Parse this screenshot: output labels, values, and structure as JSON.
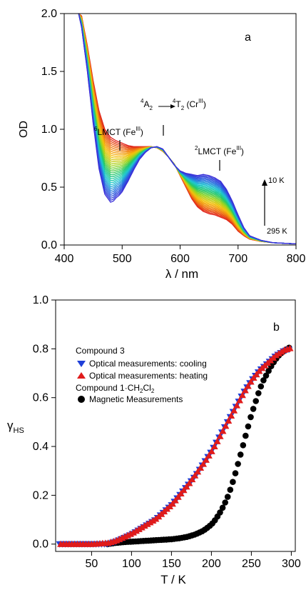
{
  "chart_data": [
    {
      "type": "line",
      "panel_label": "a",
      "xlabel": "λ / nm",
      "ylabel": "OD",
      "xlim": [
        400,
        800
      ],
      "ylim": [
        0.0,
        2.0
      ],
      "xticks": [
        "400",
        "500",
        "600",
        "700",
        "800"
      ],
      "yticks": [
        "0.0",
        "0.5",
        "1.0",
        "1.5",
        "2.0"
      ],
      "annotations": {
        "lmct6": {
          "lead": "6",
          "main": "LMCT (Fe",
          "sup": "III",
          "tail": ")"
        },
        "dd": {
          "s1": "4",
          "a": "A",
          "a_sub": "2",
          "s2": "4",
          "t": "T",
          "t_sub": "2",
          "cr": " (Cr",
          "cr_sup": "III",
          "tail": ")"
        },
        "lmct2": {
          "lead": "2",
          "main": "LMCT (Fe",
          "sup": "III",
          "tail": ")"
        },
        "temp_high": "10 K",
        "temp_low": "295 K"
      },
      "color_gradient": [
        "#e0201a",
        "#f07a12",
        "#f5c20c",
        "#9cd51e",
        "#22c86a",
        "#1ec8d0",
        "#2a6ae0",
        "#3a2fd8"
      ],
      "series": [
        {
          "temperature": "295 K",
          "x": [
            425,
            430,
            440,
            450,
            460,
            470,
            480,
            490,
            500,
            510,
            520,
            530,
            540,
            550,
            560,
            570,
            580,
            590,
            600,
            610,
            620,
            630,
            640,
            650,
            660,
            670,
            680,
            690,
            700,
            710,
            720,
            740,
            760,
            780,
            800
          ],
          "y": [
            2.0,
            1.98,
            1.72,
            1.42,
            1.16,
            1.0,
            0.93,
            0.9,
            0.88,
            0.86,
            0.85,
            0.85,
            0.85,
            0.85,
            0.84,
            0.81,
            0.76,
            0.7,
            0.6,
            0.5,
            0.4,
            0.33,
            0.29,
            0.27,
            0.26,
            0.24,
            0.22,
            0.18,
            0.12,
            0.08,
            0.05,
            0.03,
            0.02,
            0.015,
            0.01
          ]
        },
        {
          "temperature": "10 K",
          "x": [
            425,
            430,
            440,
            450,
            460,
            470,
            480,
            485,
            490,
            495,
            500,
            510,
            520,
            530,
            540,
            550,
            560,
            570,
            580,
            590,
            600,
            610,
            620,
            630,
            640,
            650,
            660,
            670,
            680,
            690,
            700,
            710,
            720,
            740,
            760,
            780,
            800
          ],
          "y": [
            2.0,
            1.88,
            1.5,
            1.05,
            0.66,
            0.44,
            0.37,
            0.38,
            0.41,
            0.43,
            0.46,
            0.55,
            0.65,
            0.74,
            0.8,
            0.84,
            0.85,
            0.83,
            0.76,
            0.69,
            0.64,
            0.62,
            0.61,
            0.6,
            0.61,
            0.6,
            0.58,
            0.55,
            0.48,
            0.38,
            0.26,
            0.15,
            0.08,
            0.04,
            0.02,
            0.015,
            0.01
          ]
        }
      ]
    },
    {
      "type": "scatter",
      "panel_label": "b",
      "xlabel": "T / K",
      "ylabel": "γHS",
      "xlim": [
        5,
        305
      ],
      "ylim": [
        -0.03,
        1.0
      ],
      "xticks": [
        "50",
        "100",
        "150",
        "200",
        "250",
        "300"
      ],
      "yticks": [
        "0.0",
        "0.2",
        "0.4",
        "0.6",
        "0.8",
        "1.0"
      ],
      "legend": {
        "group1": "Compound 3",
        "group2_pre": "Compound 1·CH",
        "group2_sub1": "2",
        "group2_mid": "Cl",
        "group2_sub2": "2"
      },
      "series": [
        {
          "name": "Optical measurements: cooling",
          "marker": "triangle-down",
          "color": "#1f3fd8",
          "x": [
            10,
            30,
            50,
            70,
            80,
            90,
            100,
            110,
            120,
            130,
            140,
            150,
            160,
            170,
            180,
            190,
            200,
            210,
            220,
            230,
            240,
            250,
            260,
            270,
            280,
            290,
            300
          ],
          "y": [
            0.0,
            0.0,
            0.0,
            0.0,
            0.01,
            0.025,
            0.04,
            0.06,
            0.08,
            0.1,
            0.13,
            0.16,
            0.2,
            0.24,
            0.28,
            0.33,
            0.38,
            0.44,
            0.5,
            0.56,
            0.62,
            0.67,
            0.71,
            0.74,
            0.77,
            0.79,
            0.8
          ]
        },
        {
          "name": "Optical measurements: heating",
          "marker": "triangle-up",
          "color": "#e01b1b",
          "x": [
            10,
            30,
            50,
            70,
            80,
            90,
            100,
            110,
            120,
            130,
            140,
            150,
            160,
            170,
            180,
            190,
            200,
            210,
            220,
            230,
            240,
            250,
            260,
            270,
            280,
            290,
            300
          ],
          "y": [
            0.0,
            0.0,
            0.0,
            0.005,
            0.015,
            0.03,
            0.045,
            0.065,
            0.085,
            0.105,
            0.135,
            0.165,
            0.205,
            0.245,
            0.29,
            0.335,
            0.385,
            0.445,
            0.505,
            0.565,
            0.625,
            0.675,
            0.715,
            0.745,
            0.775,
            0.795,
            0.805
          ]
        },
        {
          "name": "Magnetic Measurements",
          "marker": "circle",
          "color": "#000000",
          "x": [
            70,
            80,
            90,
            100,
            110,
            120,
            130,
            140,
            150,
            160,
            170,
            180,
            190,
            200,
            205,
            210,
            215,
            220,
            225,
            230,
            235,
            240,
            245,
            250,
            255,
            260,
            265,
            270,
            275,
            280,
            285,
            290,
            295,
            300
          ],
          "y": [
            0.0,
            0.005,
            0.008,
            0.01,
            0.012,
            0.014,
            0.016,
            0.018,
            0.02,
            0.024,
            0.03,
            0.04,
            0.055,
            0.08,
            0.1,
            0.125,
            0.155,
            0.19,
            0.235,
            0.29,
            0.35,
            0.41,
            0.47,
            0.53,
            0.58,
            0.63,
            0.67,
            0.7,
            0.73,
            0.755,
            0.775,
            0.79,
            0.8,
            0.81
          ]
        }
      ]
    }
  ]
}
